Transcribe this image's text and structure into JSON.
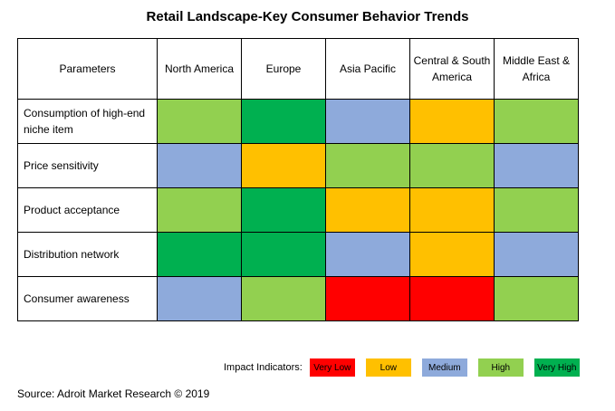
{
  "chart_data": {
    "type": "table",
    "title": "Retail Landscape-Key Consumer Behavior Trends",
    "header_first": "Parameters",
    "regions": [
      "North America",
      "Europe",
      "Asia Pacific",
      "Central & South America",
      "Middle East & Africa"
    ],
    "rows": [
      {
        "parameter": "Consumption of high-end niche item",
        "ratings": [
          "High",
          "Very High",
          "Medium",
          "Low",
          "High"
        ]
      },
      {
        "parameter": "Price sensitivity",
        "ratings": [
          "Medium",
          "Low",
          "High",
          "High",
          "Medium"
        ]
      },
      {
        "parameter": "Product acceptance",
        "ratings": [
          "High",
          "Very High",
          "Low",
          "Low",
          "High"
        ]
      },
      {
        "parameter": "Distribution network",
        "ratings": [
          "Very High",
          "Very High",
          "Medium",
          "Low",
          "Medium"
        ]
      },
      {
        "parameter": "Consumer awareness",
        "ratings": [
          "Medium",
          "High",
          "Very Low",
          "Very Low",
          "High"
        ]
      }
    ],
    "legend_label": "Impact Indicators:",
    "legend": [
      {
        "label": "Very Low",
        "color": "#ff0000"
      },
      {
        "label": "Low",
        "color": "#ffc000"
      },
      {
        "label": "Medium",
        "color": "#8eaadb"
      },
      {
        "label": "High",
        "color": "#92d050"
      },
      {
        "label": "Very High",
        "color": "#00b050"
      }
    ],
    "source": "Source: Adroit Market Research © 2019"
  }
}
